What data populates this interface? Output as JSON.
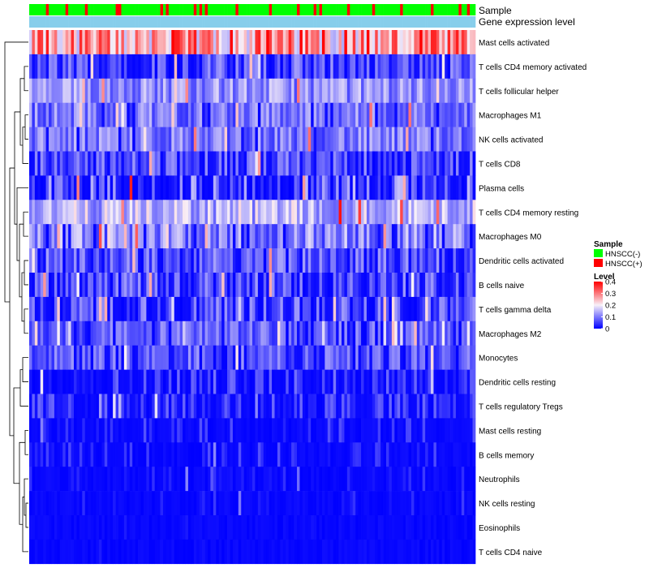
{
  "chart_data": {
    "type": "heatmap",
    "title": "",
    "column_annotations": [
      {
        "label": "Sample",
        "key": "sample"
      },
      {
        "label": "Gene expression level",
        "key": "level"
      }
    ],
    "rows": [
      {
        "label": "Mast cells activated",
        "mean": 0.26,
        "spread": 0.12,
        "sparsity": 0.0
      },
      {
        "label": "T cells CD4 memory activated",
        "mean": 0.07,
        "spread": 0.06,
        "sparsity": 0.2
      },
      {
        "label": "T cells follicular helper",
        "mean": 0.12,
        "spread": 0.06,
        "sparsity": 0.0
      },
      {
        "label": "Macrophages M1",
        "mean": 0.1,
        "spread": 0.06,
        "sparsity": 0.05
      },
      {
        "label": "NK cells activated",
        "mean": 0.1,
        "spread": 0.06,
        "sparsity": 0.05
      },
      {
        "label": "T cells CD8",
        "mean": 0.07,
        "spread": 0.06,
        "sparsity": 0.2
      },
      {
        "label": "Plasma cells",
        "mean": 0.07,
        "spread": 0.09,
        "sparsity": 0.35
      },
      {
        "label": "T cells CD4 memory resting",
        "mean": 0.15,
        "spread": 0.07,
        "sparsity": 0.0
      },
      {
        "label": "Macrophages M0",
        "mean": 0.11,
        "spread": 0.07,
        "sparsity": 0.1
      },
      {
        "label": "Dendritic cells activated",
        "mean": 0.08,
        "spread": 0.06,
        "sparsity": 0.15
      },
      {
        "label": "B cells naive",
        "mean": 0.07,
        "spread": 0.06,
        "sparsity": 0.25
      },
      {
        "label": "T cells gamma delta",
        "mean": 0.07,
        "spread": 0.06,
        "sparsity": 0.3
      },
      {
        "label": "Macrophages M2",
        "mean": 0.08,
        "spread": 0.05,
        "sparsity": 0.15
      },
      {
        "label": "Monocytes",
        "mean": 0.08,
        "spread": 0.05,
        "sparsity": 0.2
      },
      {
        "label": "Dendritic cells resting",
        "mean": 0.05,
        "spread": 0.05,
        "sparsity": 0.4
      },
      {
        "label": "T cells regulatory  Tregs",
        "mean": 0.05,
        "spread": 0.04,
        "sparsity": 0.45
      },
      {
        "label": "Mast cells resting",
        "mean": 0.03,
        "spread": 0.04,
        "sparsity": 0.75
      },
      {
        "label": "B cells memory",
        "mean": 0.03,
        "spread": 0.04,
        "sparsity": 0.75
      },
      {
        "label": "Neutrophils",
        "mean": 0.02,
        "spread": 0.03,
        "sparsity": 0.8
      },
      {
        "label": "NK cells resting",
        "mean": 0.02,
        "spread": 0.03,
        "sparsity": 0.85
      },
      {
        "label": "Eosinophils",
        "mean": 0.01,
        "spread": 0.02,
        "sparsity": 0.92
      },
      {
        "label": "T cells CD4 naive",
        "mean": 0.01,
        "spread": 0.02,
        "sparsity": 0.95
      }
    ],
    "n_columns": 160,
    "sample_groups": [
      "HNSCC(-)",
      "HNSCC(+)"
    ],
    "sample_positive_fraction": 0.2,
    "level_group": {
      "low_color": "#00A651",
      "high_color": "#87CEEB",
      "switch_fraction": 0.915
    },
    "color_scale": {
      "min": 0,
      "max": 0.4,
      "ticks": [
        0.4,
        0.3,
        0.2,
        0.1,
        0
      ],
      "tick_labels": [
        "0.4",
        "0.3",
        "0.2",
        "0.1",
        "0"
      ],
      "stops": [
        "#0000FF",
        "#F8F0F8",
        "#FF0000"
      ]
    },
    "legend": {
      "sample_title": "Sample",
      "sample_entries": [
        {
          "label": "HNSCC(-)",
          "color": "#00FF00"
        },
        {
          "label": "HNSCC(+)",
          "color": "#FF0000"
        }
      ],
      "level_title": "Level"
    },
    "dendrogram": "row clustering (hierarchical)"
  }
}
